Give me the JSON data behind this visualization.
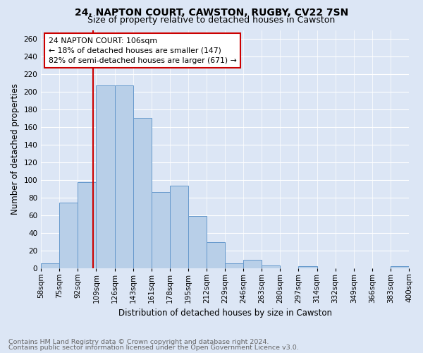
{
  "title1": "24, NAPTON COURT, CAWSTON, RUGBY, CV22 7SN",
  "title2": "Size of property relative to detached houses in Cawston",
  "xlabel": "Distribution of detached houses by size in Cawston",
  "ylabel": "Number of detached properties",
  "footnote1": "Contains HM Land Registry data © Crown copyright and database right 2024.",
  "footnote2": "Contains public sector information licensed under the Open Government Licence v3.0.",
  "bin_labels": [
    "58sqm",
    "75sqm",
    "92sqm",
    "109sqm",
    "126sqm",
    "143sqm",
    "161sqm",
    "178sqm",
    "195sqm",
    "212sqm",
    "229sqm",
    "246sqm",
    "263sqm",
    "280sqm",
    "297sqm",
    "314sqm",
    "332sqm",
    "349sqm",
    "366sqm",
    "383sqm",
    "400sqm"
  ],
  "bar_values": [
    5,
    74,
    97,
    207,
    207,
    170,
    86,
    93,
    59,
    29,
    5,
    9,
    3,
    0,
    2,
    0,
    0,
    0,
    0,
    2
  ],
  "bar_color": "#b8cfe8",
  "bar_edge_color": "#6699cc",
  "red_line_color": "#cc0000",
  "annotation_text": "24 NAPTON COURT: 106sqm\n← 18% of detached houses are smaller (147)\n82% of semi-detached houses are larger (671) →",
  "annotation_box_color": "#ffffff",
  "annotation_box_edge": "#cc0000",
  "ylim": [
    0,
    270
  ],
  "yticks": [
    0,
    20,
    40,
    60,
    80,
    100,
    120,
    140,
    160,
    180,
    200,
    220,
    240,
    260
  ],
  "background_color": "#dce6f5",
  "grid_color": "#ffffff",
  "title1_fontsize": 10,
  "title2_fontsize": 9,
  "xlabel_fontsize": 8.5,
  "ylabel_fontsize": 8.5,
  "tick_fontsize": 7.5,
  "footnote_fontsize": 6.8,
  "annotation_fontsize": 7.8
}
